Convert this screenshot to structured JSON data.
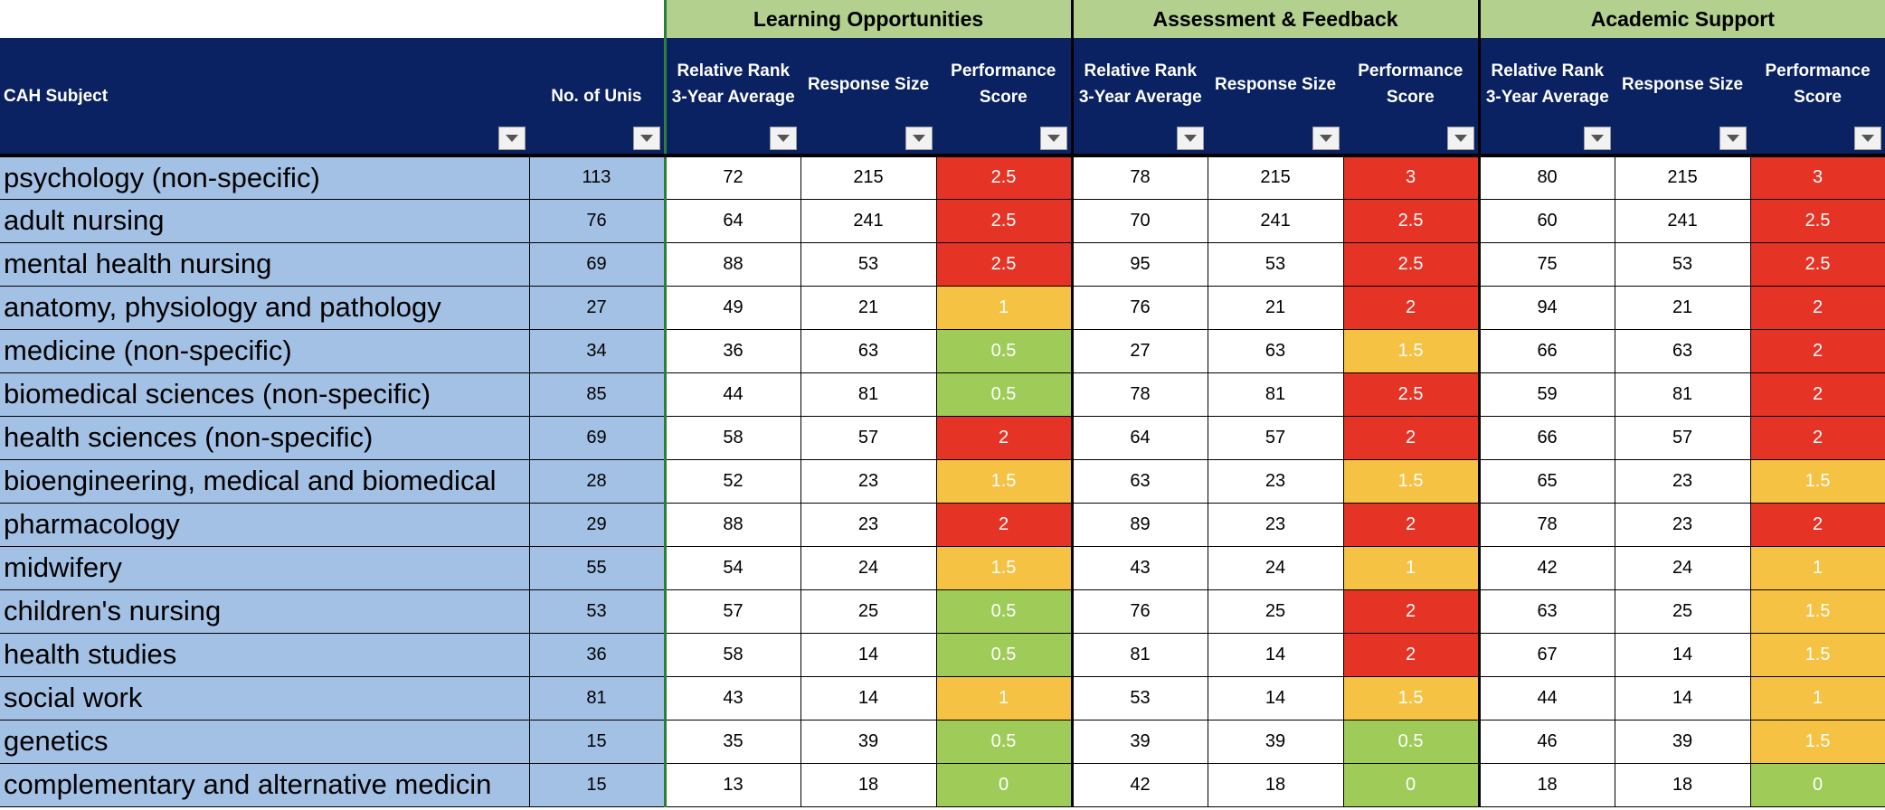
{
  "groups": [
    "Learning Opportunities",
    "Assessment & Feedback",
    "Academic Support"
  ],
  "headers": {
    "subject": "CAH Subject",
    "nunis": "No. of Unis",
    "metrics": [
      "Relative Rank 3-Year Average",
      "Response Size",
      "Performance Score"
    ]
  },
  "score_colors": {
    "red": "#e53325",
    "amber": "#f6c244",
    "green": "#9fcb59"
  },
  "rows": [
    {
      "subject": "psychology (non-specific)",
      "nunis": "113",
      "lo": [
        "72",
        "215",
        "2.5"
      ],
      "af": [
        "78",
        "215",
        "3"
      ],
      "as": [
        "80",
        "215",
        "3"
      ],
      "colors": [
        "red",
        "red",
        "red"
      ]
    },
    {
      "subject": "adult nursing",
      "nunis": "76",
      "lo": [
        "64",
        "241",
        "2.5"
      ],
      "af": [
        "70",
        "241",
        "2.5"
      ],
      "as": [
        "60",
        "241",
        "2.5"
      ],
      "colors": [
        "red",
        "red",
        "red"
      ]
    },
    {
      "subject": "mental health nursing",
      "nunis": "69",
      "lo": [
        "88",
        "53",
        "2.5"
      ],
      "af": [
        "95",
        "53",
        "2.5"
      ],
      "as": [
        "75",
        "53",
        "2.5"
      ],
      "colors": [
        "red",
        "red",
        "red"
      ]
    },
    {
      "subject": "anatomy, physiology and pathology",
      "nunis": "27",
      "lo": [
        "49",
        "21",
        "1"
      ],
      "af": [
        "76",
        "21",
        "2"
      ],
      "as": [
        "94",
        "21",
        "2"
      ],
      "colors": [
        "amber",
        "red",
        "red"
      ]
    },
    {
      "subject": "medicine (non-specific)",
      "nunis": "34",
      "lo": [
        "36",
        "63",
        "0.5"
      ],
      "af": [
        "27",
        "63",
        "1.5"
      ],
      "as": [
        "66",
        "63",
        "2"
      ],
      "colors": [
        "green",
        "amber",
        "red"
      ]
    },
    {
      "subject": "biomedical sciences (non-specific)",
      "nunis": "85",
      "lo": [
        "44",
        "81",
        "0.5"
      ],
      "af": [
        "78",
        "81",
        "2.5"
      ],
      "as": [
        "59",
        "81",
        "2"
      ],
      "colors": [
        "green",
        "red",
        "red"
      ]
    },
    {
      "subject": "health sciences (non-specific)",
      "nunis": "69",
      "lo": [
        "58",
        "57",
        "2"
      ],
      "af": [
        "64",
        "57",
        "2"
      ],
      "as": [
        "66",
        "57",
        "2"
      ],
      "colors": [
        "red",
        "red",
        "red"
      ]
    },
    {
      "subject": "bioengineering, medical and biomedical",
      "nunis": "28",
      "lo": [
        "52",
        "23",
        "1.5"
      ],
      "af": [
        "63",
        "23",
        "1.5"
      ],
      "as": [
        "65",
        "23",
        "1.5"
      ],
      "colors": [
        "amber",
        "amber",
        "amber"
      ]
    },
    {
      "subject": "pharmacology",
      "nunis": "29",
      "lo": [
        "88",
        "23",
        "2"
      ],
      "af": [
        "89",
        "23",
        "2"
      ],
      "as": [
        "78",
        "23",
        "2"
      ],
      "colors": [
        "red",
        "red",
        "red"
      ]
    },
    {
      "subject": "midwifery",
      "nunis": "55",
      "lo": [
        "54",
        "24",
        "1.5"
      ],
      "af": [
        "43",
        "24",
        "1"
      ],
      "as": [
        "42",
        "24",
        "1"
      ],
      "colors": [
        "amber",
        "amber",
        "amber"
      ]
    },
    {
      "subject": "children's nursing",
      "nunis": "53",
      "lo": [
        "57",
        "25",
        "0.5"
      ],
      "af": [
        "76",
        "25",
        "2"
      ],
      "as": [
        "63",
        "25",
        "1.5"
      ],
      "colors": [
        "green",
        "red",
        "amber"
      ]
    },
    {
      "subject": "health studies",
      "nunis": "36",
      "lo": [
        "58",
        "14",
        "0.5"
      ],
      "af": [
        "81",
        "14",
        "2"
      ],
      "as": [
        "67",
        "14",
        "1.5"
      ],
      "colors": [
        "green",
        "red",
        "amber"
      ]
    },
    {
      "subject": "social work",
      "nunis": "81",
      "lo": [
        "43",
        "14",
        "1"
      ],
      "af": [
        "53",
        "14",
        "1.5"
      ],
      "as": [
        "44",
        "14",
        "1"
      ],
      "colors": [
        "amber",
        "amber",
        "amber"
      ]
    },
    {
      "subject": "genetics",
      "nunis": "15",
      "lo": [
        "35",
        "39",
        "0.5"
      ],
      "af": [
        "39",
        "39",
        "0.5"
      ],
      "as": [
        "46",
        "39",
        "1.5"
      ],
      "colors": [
        "green",
        "green",
        "amber"
      ]
    },
    {
      "subject": "complementary and alternative medicin",
      "nunis": "15",
      "lo": [
        "13",
        "18",
        "0"
      ],
      "af": [
        "42",
        "18",
        "0"
      ],
      "as": [
        "18",
        "18",
        "0"
      ],
      "colors": [
        "green",
        "green",
        "green"
      ]
    }
  ]
}
